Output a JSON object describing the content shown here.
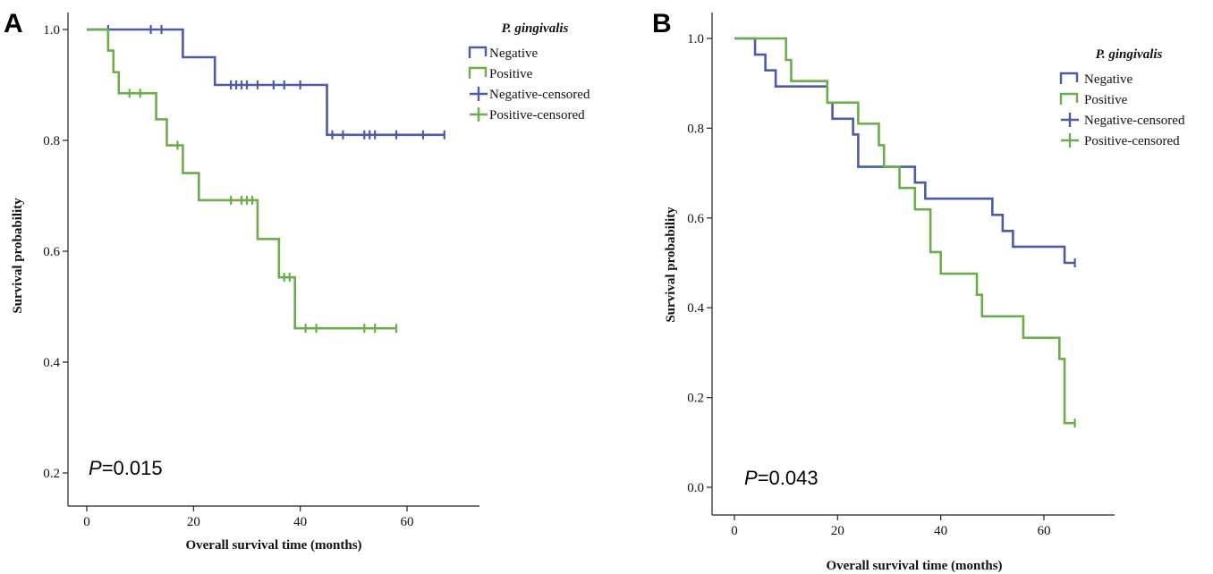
{
  "chart_data": [
    {
      "type": "line",
      "panel_label": "A",
      "xlabel": "Overall survival time (months)",
      "ylabel": "Survival probability",
      "xticks": [
        "0",
        "20",
        "40",
        "60"
      ],
      "yticks": [
        "0.2",
        "0.4",
        "0.6",
        "0.8",
        "1.0"
      ],
      "xlim": [
        -5,
        77
      ],
      "ylim": [
        0.17,
        1.04
      ],
      "grid": false,
      "legend_title": "P. gingivalis",
      "legend_position": "top-right",
      "legend": [
        "Negative",
        "Positive",
        "Negative-censored",
        "Positive-censored"
      ],
      "annotation": {
        "prefix": "P",
        "text": "=0.015"
      },
      "colors": {
        "negative": "#4B5BA8",
        "positive": "#6AAE4A"
      },
      "series": [
        {
          "name": "Negative",
          "steps": [
            [
              0,
              1.0
            ],
            [
              18,
              0.95
            ],
            [
              24,
              0.9
            ],
            [
              45,
              0.81
            ]
          ],
          "end": 67,
          "censored": [
            [
              4,
              1.0
            ],
            [
              12,
              1.0
            ],
            [
              14,
              1.0
            ],
            [
              27,
              0.9
            ],
            [
              28,
              0.9
            ],
            [
              29,
              0.9
            ],
            [
              30,
              0.9
            ],
            [
              32,
              0.9
            ],
            [
              35,
              0.9
            ],
            [
              37,
              0.9
            ],
            [
              40,
              0.9
            ],
            [
              46,
              0.81
            ],
            [
              48,
              0.81
            ],
            [
              52,
              0.81
            ],
            [
              53,
              0.81
            ],
            [
              54,
              0.81
            ],
            [
              58,
              0.81
            ],
            [
              63,
              0.81
            ],
            [
              67,
              0.81
            ]
          ]
        },
        {
          "name": "Positive",
          "steps": [
            [
              0,
              1.0
            ],
            [
              4,
              0.962
            ],
            [
              5,
              0.923
            ],
            [
              6,
              0.885
            ],
            [
              13,
              0.838
            ],
            [
              15,
              0.791
            ],
            [
              18,
              0.741
            ],
            [
              21,
              0.692
            ],
            [
              32,
              0.622
            ],
            [
              36,
              0.553
            ],
            [
              39,
              0.461
            ]
          ],
          "end": 58,
          "censored": [
            [
              8,
              0.885
            ],
            [
              10,
              0.885
            ],
            [
              17,
              0.791
            ],
            [
              27,
              0.692
            ],
            [
              29,
              0.692
            ],
            [
              30,
              0.692
            ],
            [
              31,
              0.692
            ],
            [
              37,
              0.553
            ],
            [
              38,
              0.553
            ],
            [
              41,
              0.461
            ],
            [
              43,
              0.461
            ],
            [
              52,
              0.461
            ],
            [
              54,
              0.461
            ],
            [
              58,
              0.461
            ]
          ]
        }
      ]
    },
    {
      "type": "line",
      "panel_label": "B",
      "xlabel": "Overall survival time (months)",
      "ylabel": "Survival probability",
      "xticks": [
        "0",
        "20",
        "40",
        "60"
      ],
      "yticks": [
        "0.0",
        "0.2",
        "0.4",
        "0.6",
        "0.8",
        "1.0"
      ],
      "xlim": [
        -4.5,
        74
      ],
      "ylim": [
        -0.06,
        1.05
      ],
      "grid": false,
      "legend_title": "P. gingivalis",
      "legend_position": "top-right",
      "legend": [
        "Negative",
        "Positive",
        "Negative-censored",
        "Positive-censored"
      ],
      "annotation": {
        "prefix": "P",
        "text": "=0.043"
      },
      "colors": {
        "negative": "#4B5BA8",
        "positive": "#6AAE4A"
      },
      "series": [
        {
          "name": "Negative",
          "steps": [
            [
              0,
              1.0
            ],
            [
              4,
              0.964
            ],
            [
              6,
              0.929
            ],
            [
              8,
              0.893
            ],
            [
              18,
              0.857
            ],
            [
              19,
              0.821
            ],
            [
              23,
              0.786
            ],
            [
              24,
              0.714
            ],
            [
              35,
              0.679
            ],
            [
              37,
              0.643
            ],
            [
              50,
              0.607
            ],
            [
              52,
              0.571
            ],
            [
              54,
              0.536
            ],
            [
              64,
              0.5
            ]
          ],
          "end": 66,
          "censored": [
            [
              66,
              0.5
            ]
          ]
        },
        {
          "name": "Positive",
          "steps": [
            [
              0,
              1.0
            ],
            [
              10,
              0.952
            ],
            [
              11,
              0.905
            ],
            [
              18,
              0.857
            ],
            [
              24,
              0.81
            ],
            [
              28,
              0.762
            ],
            [
              29,
              0.714
            ],
            [
              32,
              0.667
            ],
            [
              35,
              0.619
            ],
            [
              38,
              0.524
            ],
            [
              40,
              0.476
            ],
            [
              47,
              0.429
            ],
            [
              48,
              0.381
            ],
            [
              56,
              0.333
            ],
            [
              63,
              0.286
            ],
            [
              64,
              0.143
            ]
          ],
          "end": 66,
          "censored": [
            [
              66,
              0.143
            ]
          ]
        }
      ]
    }
  ]
}
